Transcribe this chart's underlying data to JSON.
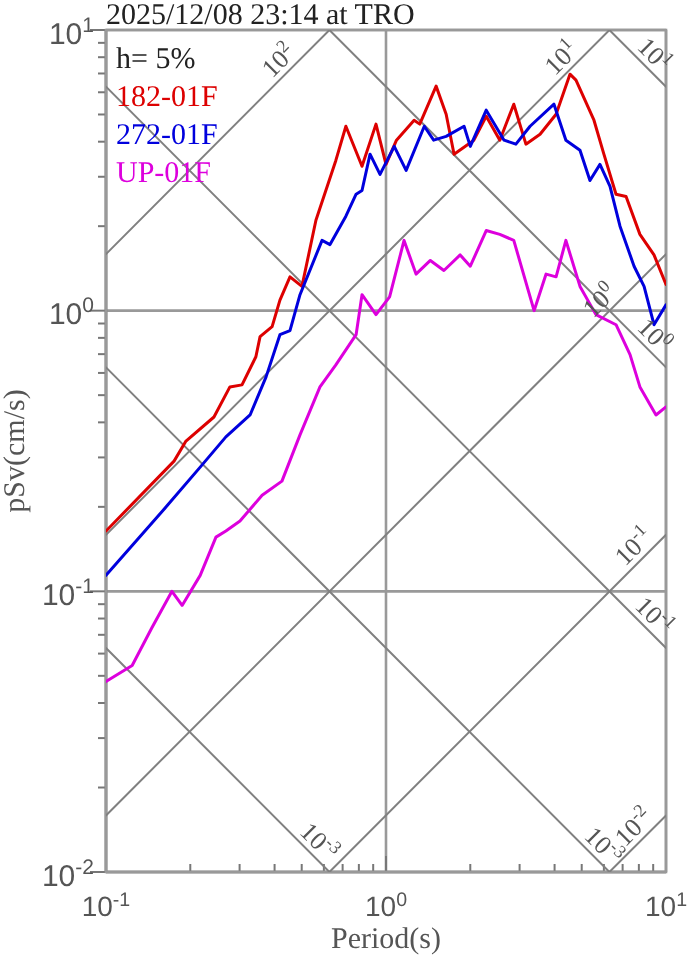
{
  "chart_data": {
    "type": "line",
    "title": "2025/12/08 23:14 at TRO",
    "xlabel": "Period(s)",
    "ylabel": "pSv(cm/s)",
    "log": "xy",
    "grid": true,
    "legend": "top left",
    "xlim": [
      0.1,
      10
    ],
    "ylim": [
      0.01,
      10
    ],
    "xticks": [
      {
        "value": 0.1,
        "label": "10$^{-1}$"
      },
      {
        "value": 0.2,
        "label": null
      },
      {
        "value": 0.3,
        "label": null
      },
      {
        "value": 0.4,
        "label": null
      },
      {
        "value": 0.5,
        "label": null
      },
      {
        "value": 0.6,
        "label": null
      },
      {
        "value": 0.7,
        "label": null
      },
      {
        "value": 0.8,
        "label": null
      },
      {
        "value": 0.9,
        "label": null
      },
      {
        "value": 1,
        "label": "10$^{0}$"
      },
      {
        "value": 2,
        "label": null
      },
      {
        "value": 3,
        "label": null
      },
      {
        "value": 4,
        "label": null
      },
      {
        "value": 5,
        "label": null
      },
      {
        "value": 6,
        "label": null
      },
      {
        "value": 7,
        "label": null
      },
      {
        "value": 8,
        "label": null
      },
      {
        "value": 9,
        "label": null
      },
      {
        "value": 10,
        "label": "10$^{1}$"
      }
    ],
    "yticks": [
      {
        "value": 0.01,
        "label": "10$^{-2}$"
      },
      {
        "value": 0.02,
        "label": null
      },
      {
        "value": 0.03,
        "label": null
      },
      {
        "value": 0.04,
        "label": null
      },
      {
        "value": 0.05,
        "label": null
      },
      {
        "value": 0.06,
        "label": null
      },
      {
        "value": 0.07,
        "label": null
      },
      {
        "value": 0.08,
        "label": null
      },
      {
        "value": 0.09,
        "label": null
      },
      {
        "value": 0.1,
        "label": "10$^{-1}$"
      },
      {
        "value": 0.2,
        "label": null
      },
      {
        "value": 0.3,
        "label": null
      },
      {
        "value": 0.4,
        "label": null
      },
      {
        "value": 0.5,
        "label": null
      },
      {
        "value": 0.6,
        "label": null
      },
      {
        "value": 0.7,
        "label": null
      },
      {
        "value": 0.8,
        "label": null
      },
      {
        "value": 0.9,
        "label": null
      },
      {
        "value": 1,
        "label": "10$^{0}$"
      },
      {
        "value": 2,
        "label": null
      },
      {
        "value": 3,
        "label": null
      },
      {
        "value": 4,
        "label": null
      },
      {
        "value": 5,
        "label": null
      },
      {
        "value": 6,
        "label": null
      },
      {
        "value": 7,
        "label": null
      },
      {
        "value": 8,
        "label": null
      },
      {
        "value": 9,
        "label": null
      },
      {
        "value": 10,
        "label": "10$^{1}$"
      }
    ],
    "series": [
      {
        "color": "#808080",
        "x": [
          0.1,
          0.628
        ],
        "values": [
          1.59,
          10
        ]
      },
      {
        "color": "#808080",
        "x": [
          0.1,
          6.28
        ],
        "values": [
          0.159,
          10
        ]
      },
      {
        "color": "#808080",
        "x": [
          0.1,
          10
        ],
        "values": [
          0.0159,
          1.59
        ]
      },
      {
        "color": "#808080",
        "x": [
          0.628,
          10
        ],
        "values": [
          0.01,
          0.159
        ]
      },
      {
        "color": "#808080",
        "x": [
          6.28,
          10
        ],
        "values": [
          0.01,
          0.0159
        ]
      },
      {
        "color": "#808080",
        "x": [
          0.1,
          10
        ],
        "values": [
          6.28,
          0.0628
        ]
      },
      {
        "color": "#808080",
        "x": [
          0.628,
          10
        ],
        "values": [
          10,
          0.628
        ]
      },
      {
        "color": "#808080",
        "x": [
          6.28,
          10
        ],
        "values": [
          10,
          6.28
        ]
      },
      {
        "color": "#808080",
        "x": [
          0.1,
          6.28
        ],
        "values": [
          0.628,
          0.01
        ]
      },
      {
        "color": "#808080",
        "x": [
          0.1,
          0.628
        ],
        "values": [
          0.0628,
          0.01
        ]
      },
      {
        "name": "182-01F",
        "color": "#dd0000",
        "x": [
          0.1,
          0.175,
          0.193,
          0.243,
          0.277,
          0.306,
          0.343,
          0.355,
          0.392,
          0.418,
          0.454,
          0.501,
          0.562,
          0.662,
          0.719,
          0.821,
          0.921,
          1.0,
          1.09,
          1.26,
          1.32,
          1.51,
          1.64,
          1.75,
          2.06,
          2.28,
          2.55,
          2.86,
          3.16,
          3.55,
          4.05,
          4.54,
          4.77,
          5.53,
          6.0,
          6.63,
          7.2,
          8.07,
          9.06,
          10
        ],
        "values": [
          0.164,
          0.291,
          0.343,
          0.418,
          0.535,
          0.544,
          0.685,
          0.808,
          0.877,
          1.09,
          1.32,
          1.22,
          2.1,
          3.43,
          4.54,
          3.27,
          4.62,
          3.32,
          4.05,
          4.77,
          4.62,
          6.31,
          5.01,
          3.61,
          4.05,
          4.93,
          4.05,
          5.44,
          3.92,
          4.25,
          5.01,
          6.96,
          6.63,
          4.77,
          3.61,
          2.6,
          2.55,
          1.87,
          1.58,
          1.24
        ]
      },
      {
        "name": "272-01F",
        "color": "#0000dd",
        "x": [
          0.1,
          0.164,
          0.217,
          0.268,
          0.327,
          0.373,
          0.418,
          0.454,
          0.493,
          0.591,
          0.631,
          0.719,
          0.782,
          0.821,
          0.877,
          0.952,
          1.07,
          1.18,
          1.37,
          1.48,
          1.64,
          1.9,
          2.0,
          2.28,
          2.64,
          2.91,
          3.27,
          3.98,
          4.39,
          4.93,
          5.35,
          5.81,
          6.31,
          6.85,
          7.69,
          8.35,
          9.06,
          10
        ],
        "values": [
          0.114,
          0.2,
          0.277,
          0.355,
          0.425,
          0.581,
          0.821,
          0.849,
          1.14,
          1.78,
          1.72,
          2.17,
          2.6,
          2.68,
          3.61,
          3.06,
          3.85,
          3.16,
          4.54,
          4.05,
          4.18,
          4.54,
          3.85,
          5.18,
          4.05,
          3.92,
          4.54,
          5.44,
          4.05,
          3.73,
          2.91,
          3.32,
          2.77,
          2.0,
          1.44,
          1.22,
          0.891,
          1.05
        ]
      },
      {
        "name": "UP-01F",
        "color": "#dd00dd",
        "x": [
          0.1,
          0.124,
          0.146,
          0.172,
          0.187,
          0.217,
          0.247,
          0.268,
          0.301,
          0.361,
          0.425,
          0.493,
          0.581,
          0.662,
          0.782,
          0.821,
          0.921,
          1.03,
          1.16,
          1.28,
          1.44,
          1.61,
          1.84,
          2.0,
          2.28,
          2.55,
          2.86,
          3.38,
          3.73,
          4.05,
          4.39,
          4.93,
          5.62,
          6.63,
          7.44,
          8.07,
          9.21,
          10
        ],
        "values": [
          0.0477,
          0.0544,
          0.0743,
          0.1,
          0.0891,
          0.114,
          0.156,
          0.164,
          0.178,
          0.22,
          0.247,
          0.361,
          0.535,
          0.641,
          0.821,
          1.14,
          0.968,
          1.12,
          1.78,
          1.35,
          1.51,
          1.39,
          1.58,
          1.44,
          1.93,
          1.87,
          1.78,
          1.0,
          1.35,
          1.32,
          1.78,
          1.22,
          0.968,
          0.891,
          0.697,
          0.535,
          0.425,
          0.454
        ]
      }
    ],
    "annotations": [
      "h= 5%",
      {
        "text": "10$^{2}$",
        "x": 0.45,
        "y": 7.16
      },
      {
        "text": "10$^{1}$",
        "x": 4.6,
        "y": 7.32
      },
      {
        "text": "10$^{1}$",
        "x": 8.35,
        "y": 7.52
      },
      {
        "text": "10$^{0}$",
        "x": 6.3,
        "y": 1.0
      },
      {
        "text": "10$^{0}$",
        "x": 8.35,
        "y": 0.752
      },
      {
        "text": "10$^{-1}$",
        "x": 8.35,
        "y": 0.133
      },
      {
        "text": "10$^{-1}$",
        "x": 8.35,
        "y": 0.0752
      },
      {
        "text": "10$^{-3}$",
        "x": 0.53,
        "y": 0.0118
      },
      {
        "text": "10$^{-3}$",
        "x": 5.5,
        "y": 0.0114
      },
      {
        "text": "10$^{-2}$",
        "x": 8.35,
        "y": 0.0133
      }
    ]
  }
}
